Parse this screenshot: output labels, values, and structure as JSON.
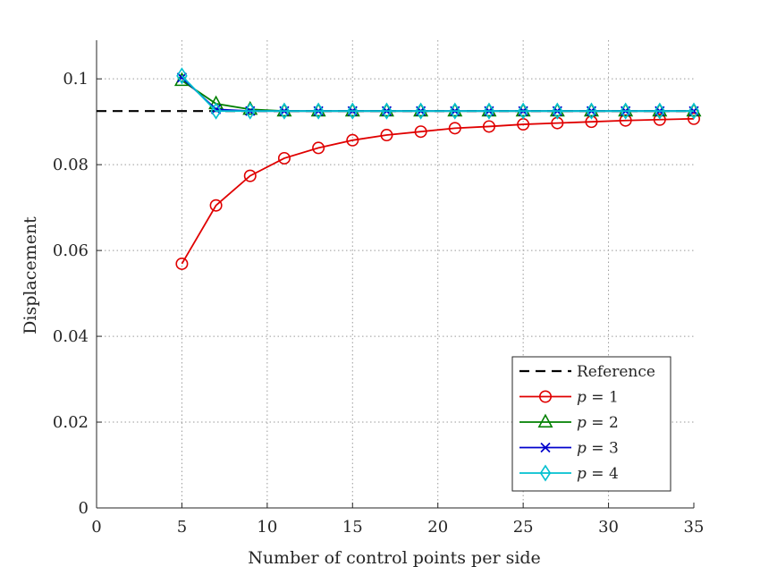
{
  "chart_data": {
    "type": "line",
    "title": "",
    "xlabel": "Number of control points per side",
    "ylabel": "Displacement",
    "xlim": [
      0,
      35
    ],
    "ylim": [
      0,
      0.109
    ],
    "xticks": [
      0,
      5,
      10,
      15,
      20,
      25,
      30,
      35
    ],
    "xtick_labels": [
      "0",
      "5",
      "10",
      "15",
      "20",
      "25",
      "30",
      "35"
    ],
    "yticks": [
      0,
      0.02,
      0.04,
      0.06,
      0.08,
      0.1
    ],
    "ytick_labels": [
      "0",
      "0.02",
      "0.04",
      "0.06",
      "0.08",
      "0.1"
    ],
    "grid": true,
    "legend_position": "bottom-right",
    "reference": {
      "name": "Reference",
      "value": 0.0925,
      "x_range": [
        0,
        35
      ],
      "color": "#000000",
      "style": "dashed"
    },
    "series": [
      {
        "name": "p = 1",
        "var": "p",
        "eq": "= 1",
        "color": "#e00000",
        "marker": "circle",
        "x": [
          5,
          7,
          9,
          11,
          13,
          15,
          17,
          19,
          21,
          23,
          25,
          27,
          29,
          31,
          33,
          35
        ],
        "values": [
          0.0569,
          0.0705,
          0.0774,
          0.0815,
          0.0839,
          0.0857,
          0.0869,
          0.0877,
          0.0885,
          0.0889,
          0.0894,
          0.0897,
          0.09,
          0.0903,
          0.0905,
          0.0907
        ]
      },
      {
        "name": "p = 2",
        "var": "p",
        "eq": "= 2",
        "color": "#008000",
        "marker": "triangle",
        "x": [
          5,
          7,
          9,
          11,
          13,
          15,
          17,
          19,
          21,
          23,
          25,
          27,
          29,
          31,
          33,
          35
        ],
        "values": [
          0.0996,
          0.0942,
          0.0929,
          0.0925,
          0.0925,
          0.0925,
          0.0925,
          0.0925,
          0.0925,
          0.0925,
          0.0925,
          0.0925,
          0.0925,
          0.0925,
          0.0925,
          0.0925
        ]
      },
      {
        "name": "p = 3",
        "var": "p",
        "eq": "= 3",
        "color": "#0000cc",
        "marker": "x",
        "x": [
          5,
          7,
          9,
          11,
          13,
          15,
          17,
          19,
          21,
          23,
          25,
          27,
          29,
          31,
          33,
          35
        ],
        "values": [
          0.1003,
          0.0929,
          0.0925,
          0.0925,
          0.0925,
          0.0925,
          0.0925,
          0.0925,
          0.0925,
          0.0925,
          0.0925,
          0.0925,
          0.0925,
          0.0925,
          0.0925,
          0.0925
        ]
      },
      {
        "name": "p = 4",
        "var": "p",
        "eq": "= 4",
        "color": "#00c0d0",
        "marker": "diamond",
        "x": [
          5,
          7,
          9,
          11,
          13,
          15,
          17,
          19,
          21,
          23,
          25,
          27,
          29,
          31,
          33,
          35
        ],
        "values": [
          0.1007,
          0.0925,
          0.0925,
          0.0925,
          0.0925,
          0.0925,
          0.0925,
          0.0925,
          0.0925,
          0.0925,
          0.0925,
          0.0925,
          0.0925,
          0.0925,
          0.0925,
          0.0925
        ]
      }
    ]
  }
}
